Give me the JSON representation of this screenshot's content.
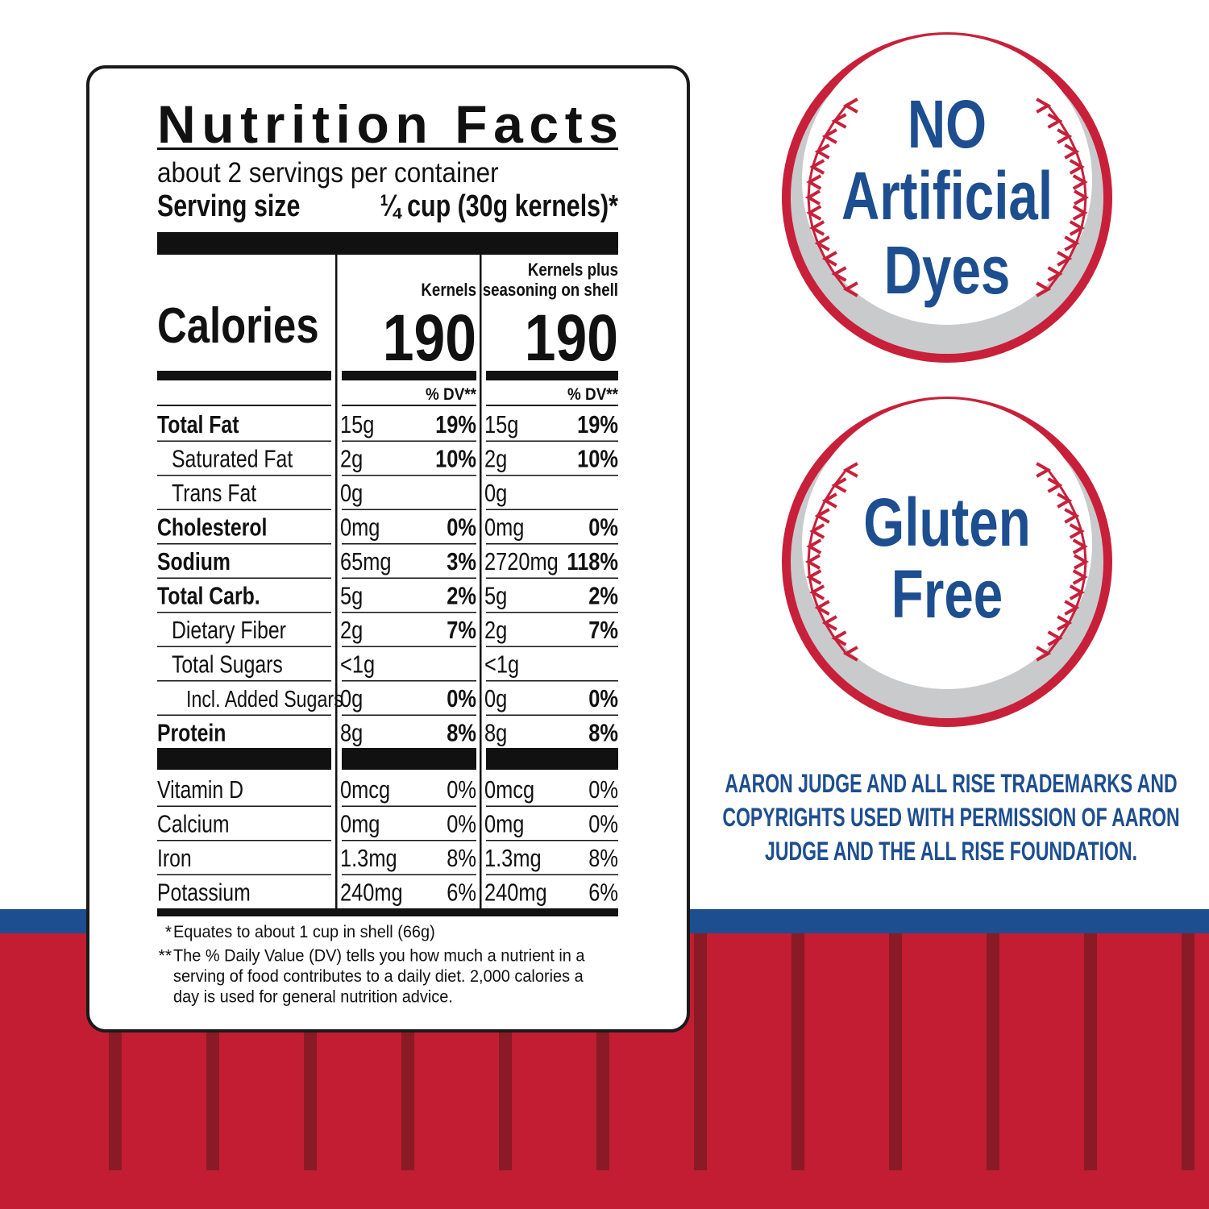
{
  "nutrition": {
    "title": "Nutrition Facts",
    "servings": "about 2 servings per container",
    "serving_size_label": "Serving size",
    "serving_size_value": "¼ cup (30g kernels)*",
    "calories_label": "Calories",
    "columns": [
      {
        "header": [
          "Kernels"
        ],
        "calories": "190"
      },
      {
        "header": [
          "Kernels plus",
          "seasoning on shell"
        ],
        "calories": "190"
      }
    ],
    "dv_header": "% DV**",
    "rows": [
      {
        "label": "Total Fat",
        "level": 0,
        "cells": [
          "15g",
          "19%",
          "15g",
          "19%"
        ]
      },
      {
        "label": "Saturated Fat",
        "level": 1,
        "cells": [
          "2g",
          "10%",
          "2g",
          "10%"
        ]
      },
      {
        "label": "Trans Fat",
        "level": 1,
        "cells": [
          "0g",
          null,
          "0g",
          null
        ]
      },
      {
        "label": "Cholesterol",
        "level": 0,
        "cells": [
          "0mg",
          "0%",
          "0mg",
          "0%"
        ]
      },
      {
        "label": "Sodium",
        "level": 0,
        "cells": [
          "65mg",
          "3%",
          "2720mg",
          "118%"
        ]
      },
      {
        "label": "Total Carb.",
        "level": 0,
        "cells": [
          "5g",
          "2%",
          "5g",
          "2%"
        ]
      },
      {
        "label": "Dietary Fiber",
        "level": 1,
        "cells": [
          "2g",
          "7%",
          "2g",
          "7%"
        ]
      },
      {
        "label": "Total Sugars",
        "level": 1,
        "cells": [
          "<1g",
          null,
          "<1g",
          null
        ]
      },
      {
        "label": "Incl. Added Sugars",
        "level": 2,
        "cells": [
          "0g",
          "0%",
          "0g",
          "0%"
        ]
      },
      {
        "label": "Protein",
        "level": 0,
        "cells": [
          "8g",
          "8%",
          "8g",
          "8%"
        ]
      }
    ],
    "vitamins": [
      {
        "label": "Vitamin D",
        "cells": [
          "0mcg",
          "0%",
          "0mcg",
          "0%"
        ]
      },
      {
        "label": "Calcium",
        "cells": [
          "0mg",
          "0%",
          "0mg",
          "0%"
        ]
      },
      {
        "label": "Iron",
        "cells": [
          "1.3mg",
          "8%",
          "1.3mg",
          "8%"
        ]
      },
      {
        "label": "Potassium",
        "cells": [
          "240mg",
          "6%",
          "240mg",
          "6%"
        ]
      }
    ],
    "footnotes": [
      {
        "marker": "*",
        "lines": [
          "Equates to about 1 cup in shell (66g)"
        ]
      },
      {
        "marker": "**",
        "lines": [
          "The % Daily Value (DV) tells you how much a nutrient in a",
          "serving of food contributes to a daily diet. 2,000 calories a",
          "day is used for general nutrition advice."
        ]
      }
    ]
  },
  "badges": [
    {
      "lines": [
        "NO",
        "Artificial",
        "Dyes"
      ]
    },
    {
      "lines": [
        "Gluten",
        "Free"
      ]
    }
  ],
  "trademark": [
    "AARON JUDGE AND ALL RISE TRADEMARKS AND",
    "COPYRIGHTS USED WITH PERMISSION OF AARON",
    "JUDGE AND THE ALL RISE FOUNDATION."
  ]
}
